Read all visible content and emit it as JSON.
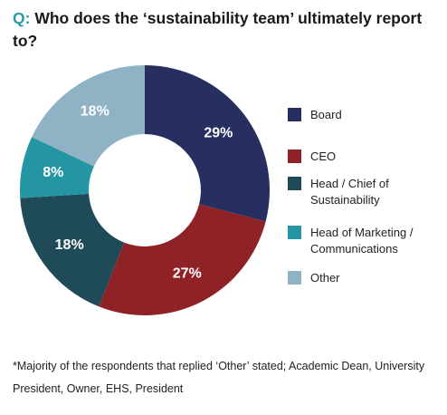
{
  "title": {
    "prefix": "Q:",
    "text": "Who does the ‘sustainability team’ ultimately report to?"
  },
  "chart_data": {
    "type": "pie",
    "donut": true,
    "categories": [
      "Board",
      "CEO",
      "Head / Chief of Sustainability",
      "Head of Marketing / Communications",
      "Other"
    ],
    "values": [
      29,
      27,
      18,
      8,
      18
    ],
    "labels": [
      "29%",
      "27%",
      "18%",
      "8%",
      "18%"
    ],
    "colors": [
      "#262f5f",
      "#8f2226",
      "#1f4a57",
      "#2395a3",
      "#8fb2c4"
    ],
    "legend_position": "right"
  },
  "legend": [
    {
      "label": "Board",
      "color": "#262f5f"
    },
    {
      "label": "CEO",
      "color": "#8f2226"
    },
    {
      "label": "Head / Chief of Sustainability",
      "color": "#1f4a57"
    },
    {
      "label": "Head of Marketing / Communications",
      "color": "#2395a3"
    },
    {
      "label": "Other",
      "color": "#8fb2c4"
    }
  ],
  "footnote": "*Majority of the respondents that replied ‘Other’ stated; Academic Dean, University President, Owner, EHS, President"
}
